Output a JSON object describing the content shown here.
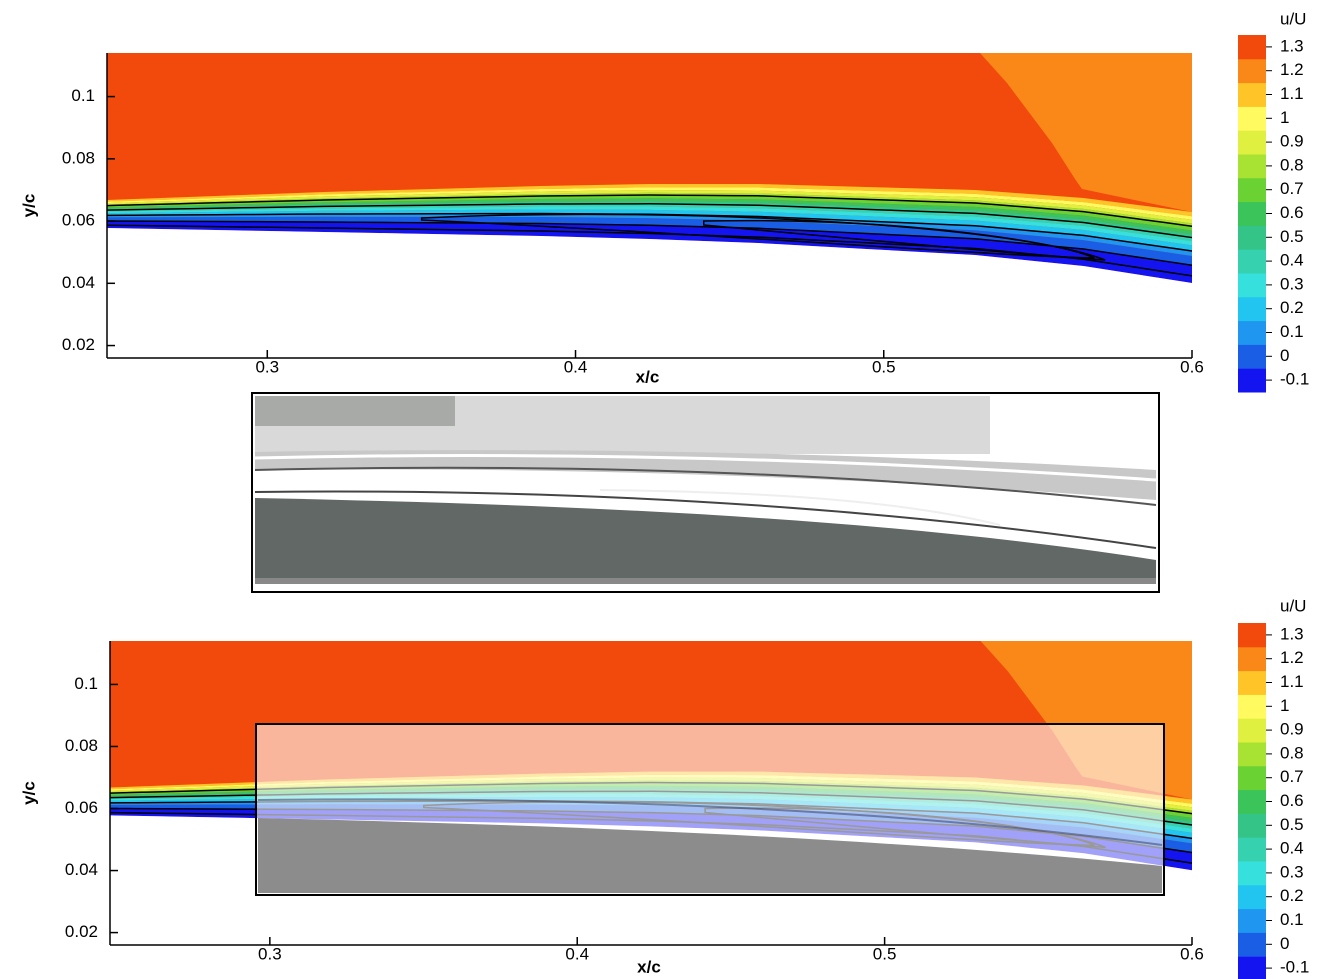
{
  "chart_data": [
    {
      "type": "contour",
      "xlabel": "x/c",
      "ylabel": "y/c",
      "colorbar_title": "u/U",
      "xlim": [
        0.248,
        0.6
      ],
      "ylim": [
        0.016,
        0.114
      ],
      "xticks": [
        0.3,
        0.4,
        0.5,
        0.6
      ],
      "yticks": [
        0.02,
        0.04,
        0.06,
        0.08,
        0.1
      ],
      "levels": [
        -0.1,
        0,
        0.1,
        0.2,
        0.3,
        0.4,
        0.5,
        0.6,
        0.7,
        0.8,
        0.9,
        1,
        1.1,
        1.2,
        1.3
      ],
      "colors": [
        "#1414f0",
        "#1a5ee6",
        "#1f96f0",
        "#22c4f0",
        "#36e0dc",
        "#36d2b0",
        "#34c488",
        "#3ac45a",
        "#6ad232",
        "#a8e232",
        "#e0f040",
        "#fffa60",
        "#ffc428",
        "#fa8818",
        "#f24a0c"
      ]
    },
    {
      "type": "contour",
      "xlabel": "x/c",
      "ylabel": "y/c",
      "colorbar_title": "u/U",
      "xlim": [
        0.248,
        0.6
      ],
      "ylim": [
        0.016,
        0.114
      ],
      "xticks": [
        0.3,
        0.4,
        0.5,
        0.6
      ],
      "yticks": [
        0.02,
        0.04,
        0.06,
        0.08,
        0.1
      ],
      "levels": [
        -0.1,
        0,
        0.1,
        0.2,
        0.3,
        0.4,
        0.5,
        0.6,
        0.7,
        0.8,
        0.9,
        1,
        1.1,
        1.2,
        1.3
      ],
      "colors": [
        "#1414f0",
        "#1a5ee6",
        "#1f96f0",
        "#22c4f0",
        "#36e0dc",
        "#36d2b0",
        "#34c488",
        "#3ac45a",
        "#6ad232",
        "#a8e232",
        "#e0f040",
        "#fffa60",
        "#ffc428",
        "#fa8818",
        "#f24a0c"
      ]
    }
  ]
}
